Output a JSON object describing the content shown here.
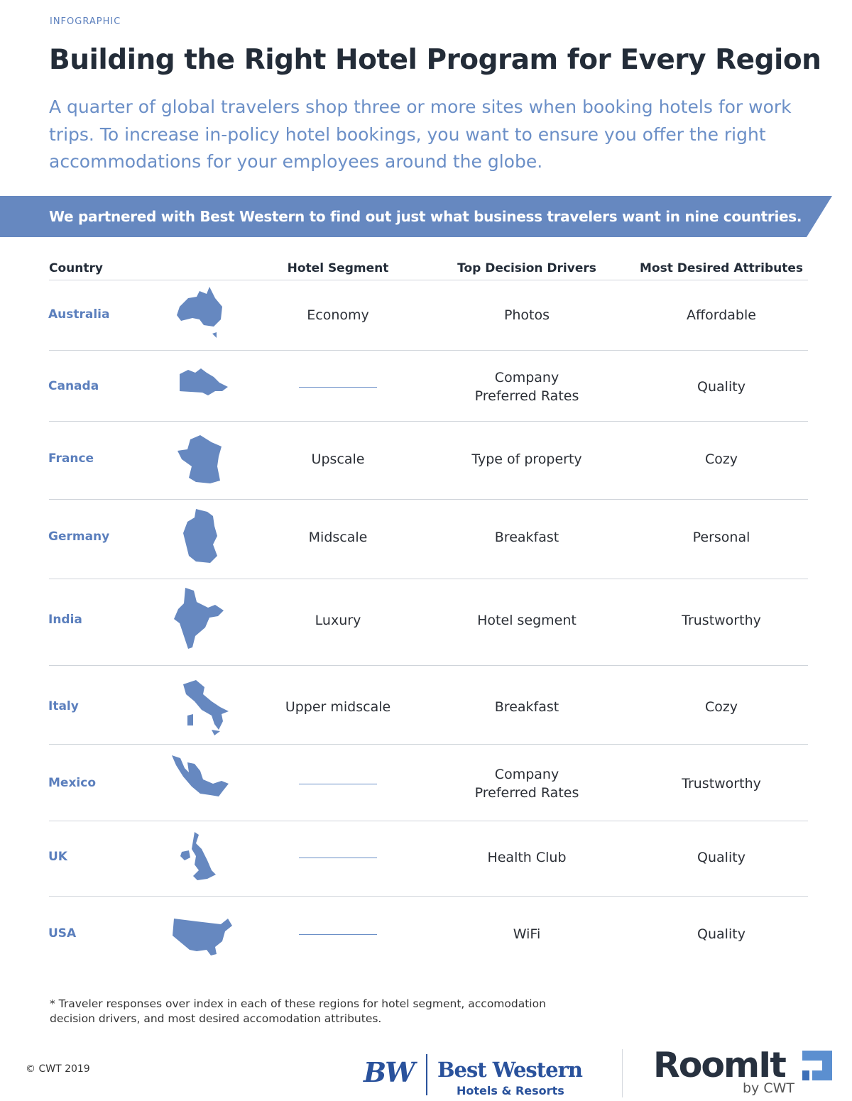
{
  "header": {
    "eyebrow": "INFOGRAPHIC",
    "title": "Building the Right Hotel Program for Every Region",
    "subtitle": "A quarter of global travelers shop three or more sites when booking hotels for work trips. To increase in-policy hotel bookings, you want to ensure you offer the right accommodations for your employees around the globe."
  },
  "banner": "We partnered with Best Western to find out just what business travelers want in nine countries.",
  "table": {
    "columns": [
      "Country",
      "Hotel Segment",
      "Top Decision Drivers",
      "Most Desired Attributes"
    ],
    "rows": [
      {
        "country": "Australia",
        "hotel_segment": "Economy",
        "top_decision_drivers": [
          "Photos"
        ],
        "most_desired_attributes": "Affordable"
      },
      {
        "country": "Canada",
        "hotel_segment": null,
        "top_decision_drivers": [
          "Company",
          "Preferred Rates"
        ],
        "most_desired_attributes": "Quality"
      },
      {
        "country": "France",
        "hotel_segment": "Upscale",
        "top_decision_drivers": [
          "Type of property"
        ],
        "most_desired_attributes": "Cozy"
      },
      {
        "country": "Germany",
        "hotel_segment": "Midscale",
        "top_decision_drivers": [
          "Breakfast"
        ],
        "most_desired_attributes": "Personal"
      },
      {
        "country": "India",
        "hotel_segment": "Luxury",
        "top_decision_drivers": [
          "Hotel segment"
        ],
        "most_desired_attributes": "Trustworthy"
      },
      {
        "country": "Italy",
        "hotel_segment": "Upper midscale",
        "top_decision_drivers": [
          "Breakfast"
        ],
        "most_desired_attributes": "Cozy"
      },
      {
        "country": "Mexico",
        "hotel_segment": null,
        "top_decision_drivers": [
          "Company",
          "Preferred Rates"
        ],
        "most_desired_attributes": "Trustworthy"
      },
      {
        "country": "UK",
        "hotel_segment": null,
        "top_decision_drivers": [
          "Health Club"
        ],
        "most_desired_attributes": "Quality"
      },
      {
        "country": "USA",
        "hotel_segment": null,
        "top_decision_drivers": [
          "WiFi"
        ],
        "most_desired_attributes": "Quality"
      }
    ]
  },
  "footnote": "* Traveler responses over index in each of these regions for hotel segment, accomodation decision drivers, and most desired accomodation attributes.",
  "footer": {
    "copyright": "© CWT 2019",
    "best_western": {
      "mark": "BW",
      "name": "Best Western",
      "tagline": "Hotels & Resorts"
    },
    "roomit": {
      "name": "RoomIt",
      "by": "by CWT"
    }
  }
}
